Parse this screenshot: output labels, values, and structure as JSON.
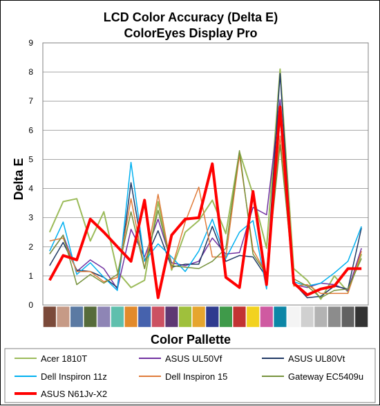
{
  "chart_data": {
    "type": "line",
    "title": "LCD Color Accuracy (Delta E)",
    "subtitle": "ColorEyes Display Pro",
    "xlabel": "Color Pallette",
    "ylabel": "Delta E",
    "ylim": [
      0,
      9
    ],
    "yticks": [
      "0",
      "1",
      "2",
      "3",
      "4",
      "5",
      "6",
      "7",
      "8",
      "9"
    ],
    "grid": true,
    "legend_position": "bottom",
    "categories": [
      "#7b4a3a",
      "#c69a86",
      "#5b7aa3",
      "#566b3a",
      "#8e85b5",
      "#5fbfad",
      "#e28a2b",
      "#4662ad",
      "#cc5162",
      "#5e3873",
      "#9fc03c",
      "#e6a52e",
      "#2f3b8f",
      "#3f9a4a",
      "#c23333",
      "#f2d21f",
      "#cf5aa1",
      "#0c86a6",
      "#f4f4f4",
      "#d0d0d0",
      "#b3b3b3",
      "#8c8c8c",
      "#626262",
      "#333333"
    ],
    "series": [
      {
        "name": "Acer 1810T",
        "color": "#9bbb59",
        "width": 2,
        "values": [
          2.5,
          3.55,
          3.65,
          2.2,
          3.2,
          1.15,
          0.6,
          0.85,
          3.55,
          1.2,
          2.5,
          2.9,
          3.6,
          2.45,
          5.25,
          3.8,
          1.95,
          8.1,
          1.25,
          0.85,
          0.2,
          1.0,
          0.45,
          1.75
        ]
      },
      {
        "name": "ASUS UL50Vf",
        "color": "#7030a0",
        "width": 1.5,
        "values": [
          1.75,
          2.4,
          1.15,
          1.55,
          1.25,
          0.55,
          2.6,
          1.65,
          2.95,
          1.45,
          1.35,
          1.5,
          2.3,
          1.75,
          1.8,
          3.35,
          3.1,
          7.05,
          0.7,
          0.6,
          0.75,
          0.7,
          0.5,
          1.95
        ]
      },
      {
        "name": "ASUS UL80Vt",
        "color": "#1f3864",
        "width": 1.5,
        "values": [
          1.35,
          2.15,
          1.2,
          1.15,
          0.95,
          0.6,
          4.2,
          1.5,
          2.55,
          1.3,
          1.4,
          1.4,
          2.7,
          1.5,
          1.7,
          1.65,
          0.95,
          7.95,
          0.75,
          0.25,
          0.3,
          0.65,
          0.55,
          2.65
        ]
      },
      {
        "name": "Dell Inspiron 11z",
        "color": "#00b0f0",
        "width": 1.5,
        "values": [
          1.85,
          2.85,
          1.05,
          1.45,
          0.95,
          0.5,
          4.9,
          1.5,
          2.1,
          1.65,
          1.15,
          1.85,
          2.95,
          1.6,
          2.5,
          2.9,
          0.55,
          6.4,
          0.8,
          0.65,
          0.75,
          1.1,
          1.5,
          2.7
        ]
      },
      {
        "name": "Dell Inspiron 15",
        "color": "#e07b39",
        "width": 1.5,
        "values": [
          2.2,
          2.3,
          1.15,
          1.15,
          0.8,
          0.95,
          3.65,
          1.25,
          3.8,
          1.25,
          2.85,
          4.05,
          1.65,
          1.65,
          5.15,
          1.9,
          1.05,
          5.8,
          0.65,
          0.7,
          0.4,
          0.4,
          0.4,
          1.85
        ]
      },
      {
        "name": "Gateway EC5409u",
        "color": "#76923c",
        "width": 1.5,
        "values": [
          1.75,
          2.4,
          0.7,
          1.05,
          0.75,
          1.05,
          3.2,
          1.25,
          3.25,
          1.35,
          1.3,
          1.25,
          1.5,
          1.95,
          5.3,
          1.75,
          1.05,
          5.5,
          0.9,
          0.65,
          0.25,
          0.5,
          0.55,
          1.6
        ]
      },
      {
        "name": "ASUS N61Jv-X2",
        "color": "#ff0000",
        "width": 4,
        "values": [
          0.85,
          1.7,
          1.55,
          2.95,
          2.5,
          2.0,
          1.5,
          3.6,
          0.25,
          2.4,
          2.95,
          3.0,
          4.85,
          0.95,
          0.6,
          3.9,
          0.7,
          6.8,
          0.75,
          0.35,
          0.55,
          0.65,
          1.25,
          1.25
        ]
      }
    ]
  }
}
